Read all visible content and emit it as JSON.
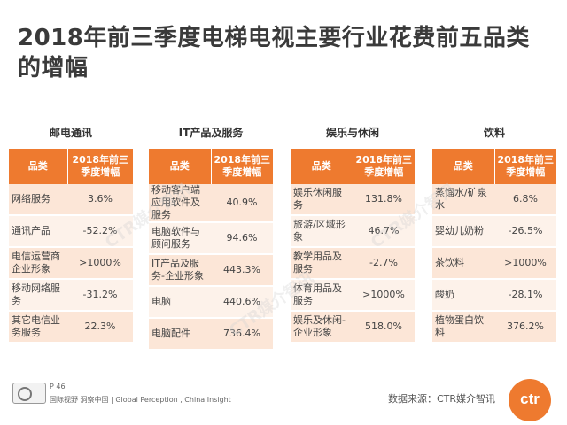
{
  "title": "2018年前三季度电梯电视主要行业花费前五品类的增幅",
  "header": {
    "col_category": "品类",
    "col_growth": "2018年前三季度增幅"
  },
  "panels": [
    {
      "industry": "邮电通讯",
      "rows": [
        {
          "name": "网络服务",
          "value": "3.6%"
        },
        {
          "name": "通讯产品",
          "value": "-52.2%"
        },
        {
          "name": "电信运营商企业形象",
          "value": ">1000%"
        },
        {
          "name": "移动网络服务",
          "value": "-31.2%"
        },
        {
          "name": "其它电信业务服务",
          "value": "22.3%"
        }
      ]
    },
    {
      "industry": "IT产品及服务",
      "rows": [
        {
          "name": "移动客户端应用软件及服务",
          "value": "40.9%"
        },
        {
          "name": "电脑软件与顾问服务",
          "value": "94.6%"
        },
        {
          "name": "IT产品及服务-企业形象",
          "value": "443.3%"
        },
        {
          "name": "电脑",
          "value": "440.6%"
        },
        {
          "name": "电脑配件",
          "value": "736.4%"
        }
      ]
    },
    {
      "industry": "娱乐与休闲",
      "rows": [
        {
          "name": "娱乐休闲服务",
          "value": "131.8%"
        },
        {
          "name": "旅游/区域形象",
          "value": "46.7%"
        },
        {
          "name": "教学用品及服务",
          "value": "-2.7%"
        },
        {
          "name": "体育用品及服务",
          "value": ">1000%"
        },
        {
          "name": "娱乐及休闲-企业形象",
          "value": "518.0%"
        }
      ]
    },
    {
      "industry": "饮料",
      "rows": [
        {
          "name": "蒸馏水/矿泉水",
          "value": "6.8%"
        },
        {
          "name": "婴幼儿奶粉",
          "value": "-26.5%"
        },
        {
          "name": "茶饮料",
          "value": ">1000%"
        },
        {
          "name": "酸奶",
          "value": "-28.1%"
        },
        {
          "name": "植物蛋白饮料",
          "value": "376.2%"
        }
      ]
    }
  ],
  "footer": {
    "page": "P 46",
    "tagline": "国际视野  洞察中国  |  Global Perception , China Insight",
    "source": "数据来源：CTR媒介智讯",
    "logo_text": "ctr"
  },
  "watermark_text": "CTR媒介智讯"
}
